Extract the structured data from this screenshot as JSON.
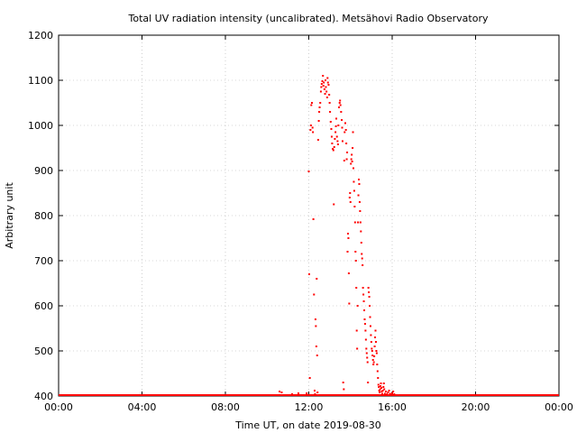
{
  "chart_data": {
    "type": "scatter",
    "title": "Total UV radiation intensity (uncalibrated). Metsähovi Radio Observatory",
    "xlabel": "Time UT, on date 2019-08-30",
    "ylabel": "Arbitrary unit",
    "xlim_hours": [
      0,
      24
    ],
    "ylim": [
      400,
      1200
    ],
    "x_tick_labels": [
      "00:00",
      "04:00",
      "08:00",
      "12:00",
      "16:00",
      "20:00",
      "00:00"
    ],
    "y_tick_values": [
      400,
      500,
      600,
      700,
      800,
      900,
      1000,
      1100,
      1200
    ],
    "grid": true,
    "marker_color": "#ff0000",
    "points": [
      [
        10.6,
        410
      ],
      [
        10.7,
        408
      ],
      [
        11.2,
        404
      ],
      [
        11.5,
        406
      ],
      [
        11.9,
        406
      ],
      [
        12.0,
        898
      ],
      [
        12.02,
        670
      ],
      [
        12.05,
        440
      ],
      [
        12.08,
        990
      ],
      [
        12.1,
        1000
      ],
      [
        12.12,
        1045
      ],
      [
        12.15,
        1050
      ],
      [
        12.18,
        995
      ],
      [
        12.2,
        985
      ],
      [
        12.22,
        792
      ],
      [
        12.25,
        625
      ],
      [
        12.28,
        412
      ],
      [
        12.3,
        404
      ],
      [
        12.32,
        570
      ],
      [
        12.34,
        555
      ],
      [
        12.36,
        510
      ],
      [
        12.38,
        660
      ],
      [
        12.4,
        490
      ],
      [
        12.42,
        408
      ],
      [
        12.45,
        968
      ],
      [
        12.48,
        1010
      ],
      [
        12.5,
        1030
      ],
      [
        12.52,
        1040
      ],
      [
        12.55,
        1050
      ],
      [
        12.58,
        1075
      ],
      [
        12.6,
        1085
      ],
      [
        12.62,
        1092
      ],
      [
        12.65,
        1098
      ],
      [
        12.68,
        1110
      ],
      [
        12.7,
        1088
      ],
      [
        12.72,
        1095
      ],
      [
        12.75,
        1080
      ],
      [
        12.78,
        1070
      ],
      [
        12.8,
        1100
      ],
      [
        12.82,
        1085
      ],
      [
        12.85,
        1075
      ],
      [
        12.88,
        1062
      ],
      [
        12.9,
        1105
      ],
      [
        12.92,
        1095
      ],
      [
        12.95,
        1090
      ],
      [
        12.98,
        1068
      ],
      [
        13.0,
        1050
      ],
      [
        13.02,
        1030
      ],
      [
        13.05,
        1008
      ],
      [
        13.08,
        992
      ],
      [
        13.1,
        975
      ],
      [
        13.12,
        960
      ],
      [
        13.15,
        948
      ],
      [
        13.18,
        945
      ],
      [
        13.2,
        825
      ],
      [
        13.22,
        952
      ],
      [
        13.25,
        970
      ],
      [
        13.28,
        985
      ],
      [
        13.3,
        998
      ],
      [
        13.32,
        1015
      ],
      [
        13.35,
        975
      ],
      [
        13.38,
        965
      ],
      [
        13.4,
        958
      ],
      [
        13.42,
        1000
      ],
      [
        13.45,
        1040
      ],
      [
        13.48,
        1050
      ],
      [
        13.5,
        1055
      ],
      [
        13.52,
        1045
      ],
      [
        13.55,
        1030
      ],
      [
        13.58,
        1012
      ],
      [
        13.6,
        995
      ],
      [
        13.62,
        965
      ],
      [
        13.65,
        430
      ],
      [
        13.68,
        415
      ],
      [
        13.7,
        922
      ],
      [
        13.72,
        985
      ],
      [
        13.75,
        1005
      ],
      [
        13.78,
        990
      ],
      [
        13.8,
        960
      ],
      [
        13.82,
        925
      ],
      [
        13.84,
        940
      ],
      [
        13.86,
        720
      ],
      [
        13.88,
        760
      ],
      [
        13.9,
        750
      ],
      [
        13.92,
        672
      ],
      [
        13.94,
        605
      ],
      [
        13.96,
        840
      ],
      [
        13.98,
        850
      ],
      [
        14.0,
        830
      ],
      [
        14.02,
        915
      ],
      [
        14.04,
        925
      ],
      [
        14.06,
        935
      ],
      [
        14.08,
        920
      ],
      [
        14.1,
        950
      ],
      [
        14.12,
        985
      ],
      [
        14.14,
        905
      ],
      [
        14.16,
        875
      ],
      [
        14.18,
        855
      ],
      [
        14.2,
        820
      ],
      [
        14.22,
        785
      ],
      [
        14.24,
        720
      ],
      [
        14.26,
        700
      ],
      [
        14.28,
        640
      ],
      [
        14.3,
        545
      ],
      [
        14.32,
        505
      ],
      [
        14.34,
        600
      ],
      [
        14.36,
        785
      ],
      [
        14.38,
        845
      ],
      [
        14.4,
        880
      ],
      [
        14.42,
        870
      ],
      [
        14.44,
        830
      ],
      [
        14.46,
        810
      ],
      [
        14.48,
        785
      ],
      [
        14.5,
        765
      ],
      [
        14.52,
        740
      ],
      [
        14.54,
        715
      ],
      [
        14.56,
        705
      ],
      [
        14.58,
        690
      ],
      [
        14.6,
        640
      ],
      [
        14.62,
        625
      ],
      [
        14.64,
        610
      ],
      [
        14.66,
        590
      ],
      [
        14.68,
        570
      ],
      [
        14.7,
        560
      ],
      [
        14.72,
        545
      ],
      [
        14.74,
        525
      ],
      [
        14.76,
        505
      ],
      [
        14.78,
        495
      ],
      [
        14.8,
        485
      ],
      [
        14.82,
        475
      ],
      [
        14.84,
        430
      ],
      [
        14.86,
        640
      ],
      [
        14.88,
        630
      ],
      [
        14.9,
        620
      ],
      [
        14.92,
        600
      ],
      [
        14.94,
        575
      ],
      [
        14.96,
        555
      ],
      [
        14.98,
        535
      ],
      [
        15.0,
        520
      ],
      [
        15.02,
        505
      ],
      [
        15.04,
        500
      ],
      [
        15.06,
        490
      ],
      [
        15.08,
        480
      ],
      [
        15.1,
        470
      ],
      [
        15.12,
        475
      ],
      [
        15.14,
        488
      ],
      [
        15.16,
        510
      ],
      [
        15.18,
        530
      ],
      [
        15.2,
        545
      ],
      [
        15.22,
        520
      ],
      [
        15.24,
        500
      ],
      [
        15.26,
        495
      ],
      [
        15.28,
        470
      ],
      [
        15.3,
        455
      ],
      [
        15.32,
        440
      ],
      [
        15.34,
        425
      ],
      [
        15.36,
        420
      ],
      [
        15.38,
        412
      ],
      [
        15.4,
        408
      ],
      [
        15.42,
        415
      ],
      [
        15.44,
        422
      ],
      [
        15.46,
        428
      ],
      [
        15.48,
        418
      ],
      [
        15.5,
        410
      ],
      [
        15.52,
        405
      ],
      [
        15.55,
        412
      ],
      [
        15.58,
        420
      ],
      [
        15.6,
        428
      ],
      [
        15.62,
        415
      ],
      [
        15.65,
        405
      ],
      [
        15.68,
        402
      ],
      [
        15.7,
        410
      ],
      [
        15.75,
        404
      ],
      [
        15.8,
        408
      ],
      [
        15.85,
        412
      ],
      [
        15.9,
        405
      ],
      [
        15.95,
        403
      ],
      [
        16.0,
        406
      ],
      [
        16.05,
        410
      ],
      [
        16.1,
        404
      ],
      [
        16.2,
        402
      ]
    ]
  }
}
